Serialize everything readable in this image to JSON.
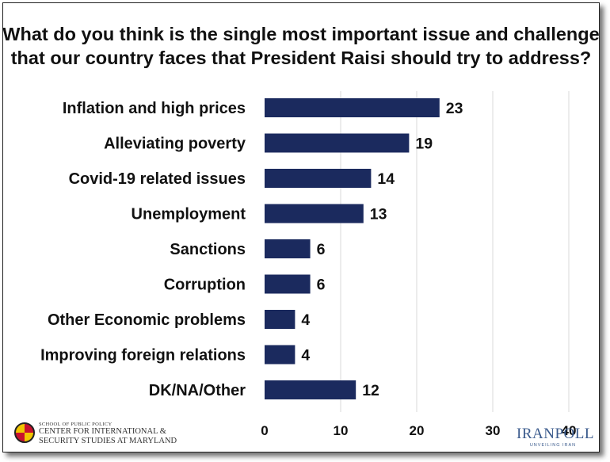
{
  "chart_data": {
    "type": "bar",
    "orientation": "horizontal",
    "title_lines": [
      "What do you think is the single most important issue and challenge",
      "that our country faces that President Raisi should try to address?"
    ],
    "categories": [
      "Inflation and high prices",
      "Alleviating poverty",
      "Covid-19 related issues",
      "Unemployment",
      "Sanctions",
      "Corruption",
      "Other Economic problems",
      "Improving foreign relations",
      "DK/NA/Other"
    ],
    "values": [
      23,
      19,
      14,
      13,
      6,
      6,
      4,
      4,
      12
    ],
    "value_labels": [
      "23",
      "19",
      "14",
      "13",
      "6",
      "6",
      "4",
      "4",
      "12"
    ],
    "xlim": [
      0,
      40
    ],
    "xticks": [
      "0",
      "10",
      "20",
      "30",
      "40"
    ],
    "grid": true,
    "bar_color": "#1b2a5e",
    "grid_color": "#d9d9d9"
  },
  "footer": {
    "left_small": "SCHOOL OF PUBLIC POLICY",
    "left_line1": "CENTER FOR INTERNATIONAL &",
    "left_line2": "SECURITY STUDIES AT MARYLAND",
    "right_logo": "IRANPOLL",
    "right_tagline": "UNVEILING IRAN"
  }
}
